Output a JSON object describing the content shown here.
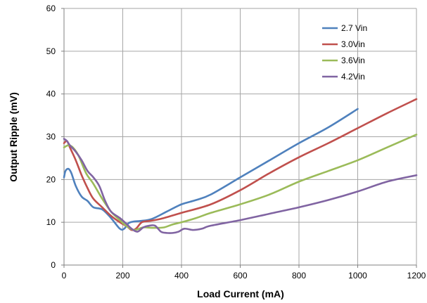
{
  "chart_data": {
    "type": "line",
    "title": "",
    "xlabel": "Load Current (mA)",
    "ylabel": "Output Ripple (mV)",
    "xlim": [
      0,
      1200
    ],
    "ylim": [
      0,
      60
    ],
    "xticks": [
      0,
      200,
      400,
      600,
      800,
      1000,
      1200
    ],
    "yticks": [
      0,
      10,
      20,
      30,
      40,
      50,
      60
    ],
    "grid": true,
    "legend_position": "top-right",
    "series": [
      {
        "name": "2.7 Vin",
        "color": "#4f81bd",
        "x": [
          0,
          5,
          15,
          25,
          40,
          60,
          80,
          100,
          130,
          160,
          190,
          205,
          220,
          240,
          260,
          300,
          350,
          400,
          450,
          500,
          600,
          700,
          800,
          900,
          1000
        ],
        "y": [
          20.5,
          22,
          22.5,
          21.5,
          18.5,
          16,
          15,
          13.5,
          13,
          11,
          8.5,
          8.5,
          9.8,
          10.2,
          10.3,
          10.8,
          12.5,
          14.2,
          15.2,
          16.5,
          20.5,
          24.5,
          28.5,
          32.2,
          36.5
        ]
      },
      {
        "name": "3.0Vin",
        "color": "#c0504d",
        "x": [
          0,
          10,
          20,
          40,
          60,
          80,
          100,
          130,
          160,
          190,
          215,
          230,
          245,
          265,
          290,
          330,
          400,
          500,
          600,
          700,
          800,
          900,
          1000,
          1100,
          1200
        ],
        "y": [
          28.5,
          29,
          27.5,
          24.5,
          21,
          18,
          15.5,
          13.5,
          11.5,
          10,
          9,
          8.2,
          8.5,
          10,
          10.3,
          10.8,
          12.2,
          14.2,
          17.5,
          21.5,
          25.2,
          28.5,
          32,
          35.5,
          38.8
        ]
      },
      {
        "name": "3.6Vin",
        "color": "#9bbb59",
        "x": [
          0,
          15,
          30,
          50,
          75,
          100,
          130,
          160,
          190,
          215,
          240,
          270,
          300,
          340,
          370,
          400,
          450,
          500,
          600,
          700,
          800,
          900,
          1000,
          1100,
          1200
        ],
        "y": [
          27.5,
          28,
          27.5,
          25.5,
          21.5,
          19,
          15.5,
          12.5,
          10.5,
          9,
          8.2,
          8.8,
          8.7,
          8.8,
          9.5,
          10,
          11,
          12.2,
          14.2,
          16.5,
          19.5,
          22,
          24.5,
          27.5,
          30.5
        ]
      },
      {
        "name": "4.2Vin",
        "color": "#8064a2",
        "x": [
          0,
          10,
          20,
          40,
          60,
          80,
          100,
          120,
          140,
          160,
          190,
          210,
          230,
          250,
          270,
          290,
          310,
          330,
          350,
          370,
          390,
          410,
          440,
          470,
          500,
          600,
          700,
          800,
          900,
          1000,
          1100,
          1200
        ],
        "y": [
          29.5,
          29,
          28,
          26.5,
          24.5,
          22,
          20.5,
          18.5,
          15,
          12.5,
          11,
          9.8,
          8.5,
          7.8,
          8.8,
          9.2,
          9.2,
          7.8,
          7.5,
          7.5,
          7.8,
          8.5,
          8.2,
          8.5,
          9.2,
          10.5,
          12,
          13.5,
          15.2,
          17.2,
          19.5,
          21
        ]
      }
    ]
  }
}
